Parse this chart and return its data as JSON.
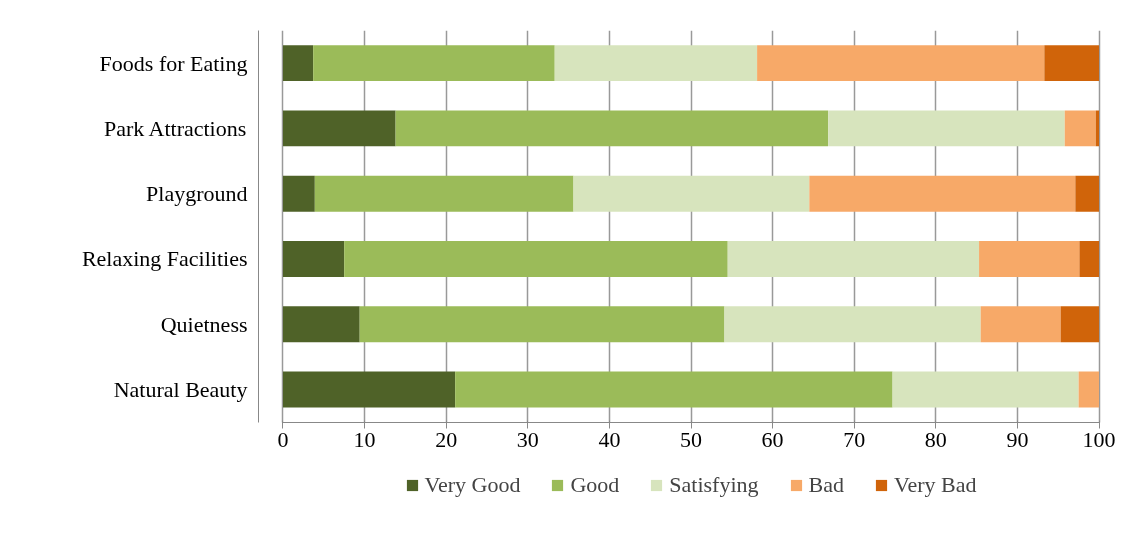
{
  "chart_data": {
    "type": "bar",
    "orientation": "horizontal",
    "stacked": true,
    "categories": [
      "Foods for Eating",
      "Park Attractions",
      "Playground",
      "Relaxing Facilities",
      "Quietness",
      "Natural Beauty"
    ],
    "series": [
      {
        "name": "Very Good",
        "color": "#4f6228",
        "values": [
          3.7,
          13.8,
          3.9,
          7.5,
          9.4,
          21.1
        ]
      },
      {
        "name": "Good",
        "color": "#9bbb59",
        "values": [
          29.6,
          53.0,
          31.7,
          47.0,
          44.7,
          53.6
        ]
      },
      {
        "name": "Satisfying",
        "color": "#d7e4bd",
        "values": [
          24.8,
          29.0,
          28.9,
          30.8,
          31.4,
          22.8
        ]
      },
      {
        "name": "Bad",
        "color": "#f7a968",
        "values": [
          35.2,
          3.8,
          32.6,
          12.3,
          9.8,
          2.5
        ]
      },
      {
        "name": "Very Bad",
        "color": "#d0640a",
        "values": [
          6.7,
          0.4,
          2.9,
          2.4,
          4.7,
          0
        ]
      }
    ],
    "xlim": [
      0,
      100
    ],
    "xticks": [
      0,
      10,
      20,
      30,
      40,
      50,
      60,
      70,
      80,
      90,
      100
    ],
    "grid": "x",
    "legend": "bottom"
  }
}
